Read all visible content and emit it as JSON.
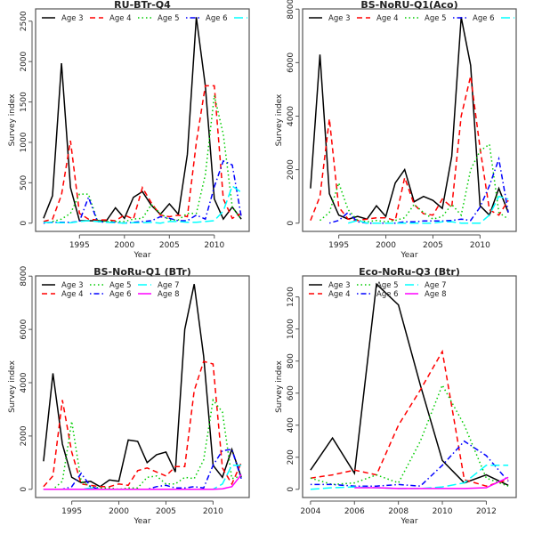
{
  "chart_data": [
    {
      "type": "line",
      "title": "RU-BTr-Q4",
      "xlabel": "Year",
      "ylabel": "Survey index",
      "xticks": [
        1995,
        2000,
        2005,
        2010
      ],
      "yticks": [
        0,
        500,
        1000,
        1500,
        2000,
        2500
      ],
      "grid": false,
      "legend": "top (inside, single row)",
      "series": [
        {
          "name": "Age 3",
          "color": "#000000",
          "x": [
            1991,
            1992,
            1993,
            1994,
            1995,
            1996,
            1997,
            1998,
            1999,
            2000,
            2001,
            2002,
            2003,
            2004,
            2005,
            2006,
            2007,
            2008,
            2009,
            2010,
            2011,
            2012,
            2013
          ],
          "values": [
            60,
            340,
            1980,
            440,
            30,
            30,
            30,
            30,
            190,
            60,
            320,
            390,
            220,
            110,
            240,
            110,
            850,
            2550,
            1700,
            300,
            50,
            200,
            50
          ]
        },
        {
          "name": "Age 4",
          "color": "#ff0000",
          "x": [
            1991,
            1992,
            1993,
            1994,
            1995,
            1996,
            1997,
            1998,
            1999,
            2000,
            2001,
            2002,
            2003,
            2004,
            2005,
            2006,
            2007,
            2008,
            2009,
            2010,
            2011,
            2012,
            2013
          ],
          "values": [
            20,
            50,
            350,
            1020,
            120,
            50,
            40,
            40,
            30,
            100,
            50,
            440,
            250,
            100,
            80,
            100,
            80,
            1000,
            1700,
            1700,
            300,
            60,
            120
          ]
        },
        {
          "name": "Age 5",
          "color": "#00cc00",
          "x": [
            1992,
            1993,
            1994,
            1995,
            1996,
            1997,
            1998,
            1999,
            2000,
            2001,
            2002,
            2003,
            2004,
            2005,
            2006,
            2007,
            2008,
            2009,
            2010,
            2011,
            2012,
            2013
          ],
          "values": [
            20,
            50,
            120,
            360,
            360,
            30,
            20,
            20,
            20,
            50,
            60,
            230,
            120,
            40,
            40,
            120,
            120,
            600,
            1580,
            1100,
            200,
            50
          ]
        },
        {
          "name": "Age 6",
          "color": "#0000ff",
          "x": [
            1991,
            1992,
            1993,
            1994,
            1995,
            1996,
            1997,
            1998,
            1999,
            2000,
            2001,
            2002,
            2003,
            2004,
            2005,
            2006,
            2007,
            2008,
            2009,
            2010,
            2011,
            2012,
            2013
          ],
          "values": [
            0,
            10,
            10,
            10,
            20,
            320,
            20,
            10,
            10,
            0,
            10,
            20,
            30,
            80,
            60,
            30,
            30,
            100,
            50,
            450,
            770,
            720,
            80
          ]
        },
        {
          "name": "",
          "color": "#00ffff",
          "x": [
            1991,
            1992,
            1993,
            1994,
            1995,
            1996,
            1997,
            1998,
            1999,
            2000,
            2001,
            2002,
            2003,
            2004,
            2005,
            2006,
            2007,
            2008,
            2009,
            2010,
            2011,
            2012,
            2013
          ],
          "values": [
            10,
            5,
            5,
            5,
            20,
            30,
            20,
            10,
            5,
            0,
            5,
            5,
            10,
            0,
            20,
            20,
            10,
            10,
            20,
            30,
            150,
            460,
            380
          ]
        }
      ]
    },
    {
      "type": "line",
      "title": "BS-NoRU-Q1(Aco)",
      "xlabel": "Year",
      "ylabel": "Survey index",
      "xticks": [
        1995,
        2000,
        2005,
        2010
      ],
      "yticks": [
        0,
        2000,
        4000,
        6000,
        8000
      ],
      "grid": false,
      "legend": "top (inside, single row)",
      "series": [
        {
          "name": "Age 3",
          "color": "#000000",
          "x": [
            1992,
            1993,
            1994,
            1995,
            1996,
            1997,
            1998,
            1999,
            2000,
            2001,
            2002,
            2003,
            2004,
            2005,
            2006,
            2007,
            2008,
            2009,
            2010,
            2011,
            2012,
            2013
          ],
          "values": [
            1300,
            6300,
            1100,
            300,
            150,
            250,
            150,
            650,
            250,
            1500,
            2000,
            800,
            1000,
            850,
            550,
            2500,
            7700,
            5900,
            650,
            300,
            1300,
            400
          ]
        },
        {
          "name": "Age 4",
          "color": "#ff0000",
          "x": [
            1992,
            1993,
            1994,
            1995,
            1996,
            1997,
            1998,
            1999,
            2000,
            2001,
            2002,
            2003,
            2004,
            2005,
            2006,
            2007,
            2008,
            2009,
            2010,
            2011,
            2012,
            2013
          ],
          "values": [
            100,
            1000,
            3900,
            600,
            150,
            100,
            150,
            200,
            200,
            100,
            1700,
            700,
            350,
            300,
            900,
            600,
            4000,
            5500,
            2800,
            500,
            300,
            850
          ]
        },
        {
          "name": "Age 5",
          "color": "#00cc00",
          "x": [
            1993,
            1994,
            1995,
            1996,
            1997,
            1998,
            1999,
            2000,
            2001,
            2002,
            2003,
            2004,
            2005,
            2006,
            2007,
            2008,
            2009,
            2010,
            2011,
            2012,
            2013
          ],
          "values": [
            100,
            400,
            1500,
            500,
            100,
            50,
            100,
            50,
            100,
            200,
            700,
            400,
            150,
            250,
            700,
            300,
            2000,
            2700,
            2950,
            400,
            150
          ]
        },
        {
          "name": "Age 6",
          "color": "#0000ff",
          "x": [
            1994,
            1995,
            1996,
            1997,
            1998,
            1999,
            2000,
            2001,
            2002,
            2003,
            2004,
            2005,
            2006,
            2007,
            2008,
            2009,
            2010,
            2011,
            2012,
            2013
          ],
          "values": [
            0,
            100,
            400,
            50,
            0,
            0,
            0,
            0,
            50,
            50,
            80,
            80,
            80,
            100,
            150,
            100,
            600,
            1400,
            2400,
            400
          ]
        },
        {
          "name": "",
          "color": "#00ffff",
          "x": [
            1996,
            1997,
            1998,
            1999,
            2000,
            2001,
            2002,
            2003,
            2004,
            2005,
            2006,
            2007,
            2008,
            2009,
            2010,
            2011,
            2012,
            2013
          ],
          "values": [
            0,
            100,
            0,
            0,
            0,
            0,
            0,
            0,
            0,
            0,
            50,
            50,
            0,
            0,
            0,
            300,
            1000,
            900
          ]
        }
      ]
    },
    {
      "type": "line",
      "title": "BS-NoRu-Q1 (BTr)",
      "xlabel": "Year",
      "ylabel": "Survey index",
      "xticks": [
        1995,
        2000,
        2005,
        2010
      ],
      "yticks": [
        0,
        2000,
        4000,
        6000,
        8000
      ],
      "grid": false,
      "legend": "top-left (inside, three columns)",
      "series": [
        {
          "name": "Age 3",
          "color": "#000000",
          "x": [
            1992,
            1993,
            1994,
            1995,
            1996,
            1997,
            1998,
            1999,
            2000,
            2001,
            2002,
            2003,
            2004,
            2005,
            2006,
            2007,
            2008,
            2009,
            2010,
            2011,
            2012,
            2013
          ],
          "values": [
            1050,
            4350,
            1700,
            450,
            250,
            300,
            100,
            350,
            300,
            1850,
            1800,
            1000,
            1300,
            1400,
            650,
            6000,
            7700,
            5000,
            900,
            450,
            1500,
            450
          ]
        },
        {
          "name": "Age 4",
          "color": "#ff0000",
          "x": [
            1992,
            1993,
            1994,
            1995,
            1996,
            1997,
            1998,
            1999,
            2000,
            2001,
            2002,
            2003,
            2004,
            2005,
            2006,
            2007,
            2008,
            2009,
            2010,
            2011,
            2012,
            2013
          ],
          "values": [
            100,
            500,
            3350,
            1400,
            200,
            150,
            100,
            100,
            200,
            150,
            700,
            800,
            650,
            500,
            850,
            850,
            3700,
            4800,
            4700,
            800,
            200,
            1000
          ]
        },
        {
          "name": "Age 5",
          "color": "#00cc00",
          "x": [
            1992,
            1993,
            1994,
            1995,
            1996,
            1997,
            1998,
            1999,
            2000,
            2001,
            2002,
            2003,
            2004,
            2005,
            2006,
            2007,
            2008,
            2009,
            2010,
            2011,
            2012,
            2013
          ],
          "values": [
            0,
            0,
            300,
            2550,
            300,
            100,
            50,
            50,
            0,
            50,
            50,
            450,
            500,
            200,
            200,
            450,
            400,
            1100,
            3350,
            2900,
            400,
            500
          ]
        },
        {
          "name": "Age 6",
          "color": "#0000ff",
          "x": [
            1992,
            1993,
            1994,
            1995,
            1996,
            1997,
            1998,
            1999,
            2000,
            2001,
            2002,
            2003,
            2004,
            2005,
            2006,
            2007,
            2008,
            2009,
            2010,
            2011,
            2012,
            2013
          ],
          "values": [
            0,
            0,
            0,
            100,
            600,
            100,
            0,
            0,
            0,
            0,
            0,
            0,
            100,
            150,
            50,
            50,
            100,
            50,
            900,
            1450,
            1500,
            400
          ]
        },
        {
          "name": "Age 7",
          "color": "#00ffff",
          "x": [
            1995,
            1996,
            1997,
            1998,
            1999,
            2000,
            2001,
            2002,
            2003,
            2004,
            2005,
            2006,
            2007,
            2008,
            2009,
            2010,
            2011,
            2012,
            2013
          ],
          "values": [
            0,
            0,
            50,
            0,
            0,
            0,
            0,
            0,
            0,
            0,
            0,
            0,
            0,
            0,
            0,
            0,
            200,
            900,
            900
          ]
        },
        {
          "name": "Age 8",
          "color": "#ff00ff",
          "x": [
            1992,
            1993,
            1994,
            1995,
            1996,
            1997,
            1998,
            1999,
            2000,
            2001,
            2002,
            2003,
            2004,
            2005,
            2006,
            2007,
            2008,
            2009,
            2010,
            2011,
            2012,
            2013
          ],
          "values": [
            0,
            0,
            0,
            0,
            0,
            0,
            0,
            0,
            0,
            0,
            0,
            0,
            0,
            0,
            0,
            0,
            0,
            0,
            0,
            20,
            100,
            550
          ]
        }
      ]
    },
    {
      "type": "line",
      "title": "Eco-NoRu-Q3 (Btr)",
      "xlabel": "Year",
      "ylabel": "Survey index",
      "xticks": [
        2004,
        2006,
        2008,
        2010,
        2012
      ],
      "yticks": [
        0,
        200,
        400,
        600,
        800,
        1000,
        1200
      ],
      "grid": false,
      "legend": "top-left (inside, three columns)",
      "series": [
        {
          "name": "Age 3",
          "color": "#000000",
          "x": [
            2004,
            2005,
            2006,
            2007,
            2008,
            2009,
            2010,
            2011,
            2012,
            2013
          ],
          "values": [
            120,
            320,
            100,
            1280,
            1150,
            650,
            180,
            40,
            90,
            25
          ]
        },
        {
          "name": "Age 4",
          "color": "#ff0000",
          "x": [
            2004,
            2005,
            2006,
            2007,
            2008,
            2009,
            2010,
            2011,
            2012,
            2013
          ],
          "values": [
            70,
            90,
            120,
            90,
            400,
            620,
            860,
            60,
            20,
            60
          ]
        },
        {
          "name": "Age 5",
          "color": "#00cc00",
          "x": [
            2004,
            2005,
            2006,
            2007,
            2008,
            2009,
            2010,
            2011,
            2012,
            2013
          ],
          "values": [
            70,
            30,
            40,
            90,
            40,
            300,
            650,
            400,
            70,
            20
          ]
        },
        {
          "name": "Age 6",
          "color": "#0000ff",
          "x": [
            2004,
            2005,
            2006,
            2007,
            2008,
            2009,
            2010,
            2011,
            2012,
            2013
          ],
          "values": [
            30,
            30,
            20,
            20,
            30,
            20,
            150,
            300,
            210,
            50
          ]
        },
        {
          "name": "Age 7",
          "color": "#00ffff",
          "x": [
            2004,
            2005,
            2006,
            2007,
            2008,
            2009,
            2010,
            2011,
            2012,
            2013
          ],
          "values": [
            0,
            10,
            15,
            10,
            5,
            5,
            15,
            40,
            150,
            150
          ]
        },
        {
          "name": "Age 8",
          "color": "#ff00ff",
          "x": [
            2006,
            2007,
            2008,
            2009,
            2010,
            2011,
            2012,
            2013
          ],
          "values": [
            10,
            10,
            5,
            5,
            5,
            5,
            10,
            75
          ]
        }
      ]
    }
  ]
}
